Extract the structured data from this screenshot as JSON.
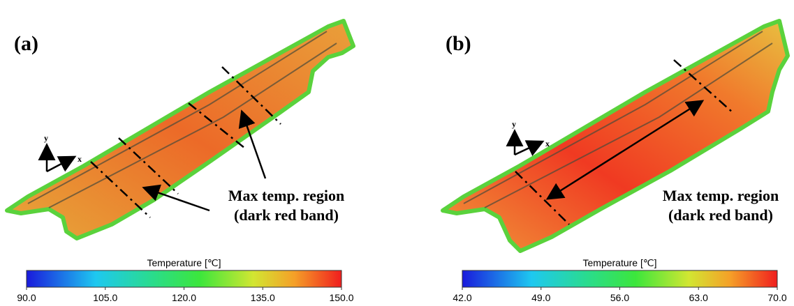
{
  "panels": [
    {
      "label": "(a)",
      "axis_labels": {
        "y": "y",
        "x": "x"
      },
      "annotation": [
        "Max temp. region",
        "(dark red band)"
      ],
      "colorbar": {
        "title": "Temperature [℃]",
        "range": [
          90,
          150
        ],
        "ticks": [
          {
            "value": 90,
            "label": "90.0"
          },
          {
            "value": 105,
            "label": "105.0"
          },
          {
            "value": 120,
            "label": "120.0"
          },
          {
            "value": 135,
            "label": "135.0"
          },
          {
            "value": 150,
            "label": "150.0"
          }
        ]
      }
    },
    {
      "label": "(b)",
      "axis_labels": {
        "y": "y",
        "x": "x"
      },
      "annotation": [
        "Max temp. region",
        "(dark red band)"
      ],
      "colorbar": {
        "title": "Temperature [℃]",
        "range": [
          42,
          70
        ],
        "ticks": [
          {
            "value": 42,
            "label": "42.0"
          },
          {
            "value": 49,
            "label": "49.0"
          },
          {
            "value": 56,
            "label": "56.0"
          },
          {
            "value": 63,
            "label": "63.0"
          },
          {
            "value": 70,
            "label": "70.0"
          }
        ]
      }
    }
  ]
}
